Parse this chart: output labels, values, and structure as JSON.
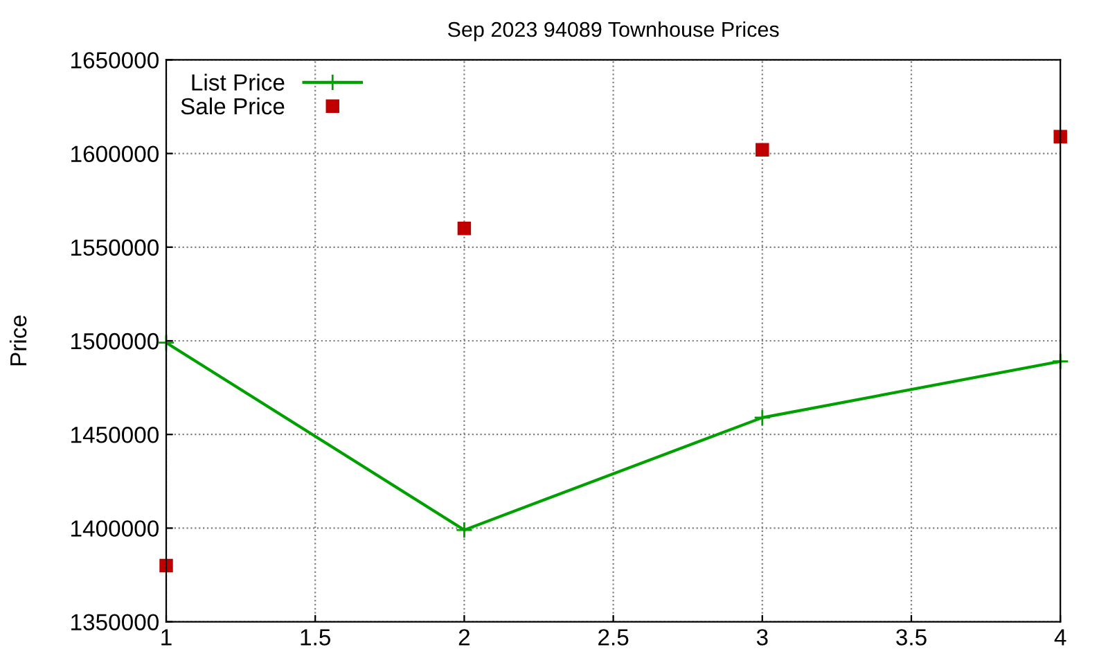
{
  "chart_data": {
    "type": "line",
    "title": "Sep 2023 94089 Townhouse Prices",
    "ylabel": "Price",
    "x": [
      1,
      2,
      3,
      4
    ],
    "series": [
      {
        "name": "List Price",
        "color": "#00a000",
        "marker": "cross",
        "values": [
          1499000,
          1399000,
          1459000,
          1489000
        ]
      },
      {
        "name": "Sale Price",
        "color": "#c00000",
        "type": "scatter",
        "marker": "square",
        "values": [
          1380000,
          1560000,
          1602000,
          1609000
        ]
      }
    ],
    "xlim": [
      1,
      4
    ],
    "xticks": [
      1,
      1.5,
      2,
      2.5,
      3,
      3.5,
      4
    ],
    "ylim": [
      1350000,
      1650000
    ],
    "yticks": [
      1350000,
      1400000,
      1450000,
      1500000,
      1550000,
      1600000,
      1650000
    ],
    "grid": true,
    "legend": "top left"
  }
}
